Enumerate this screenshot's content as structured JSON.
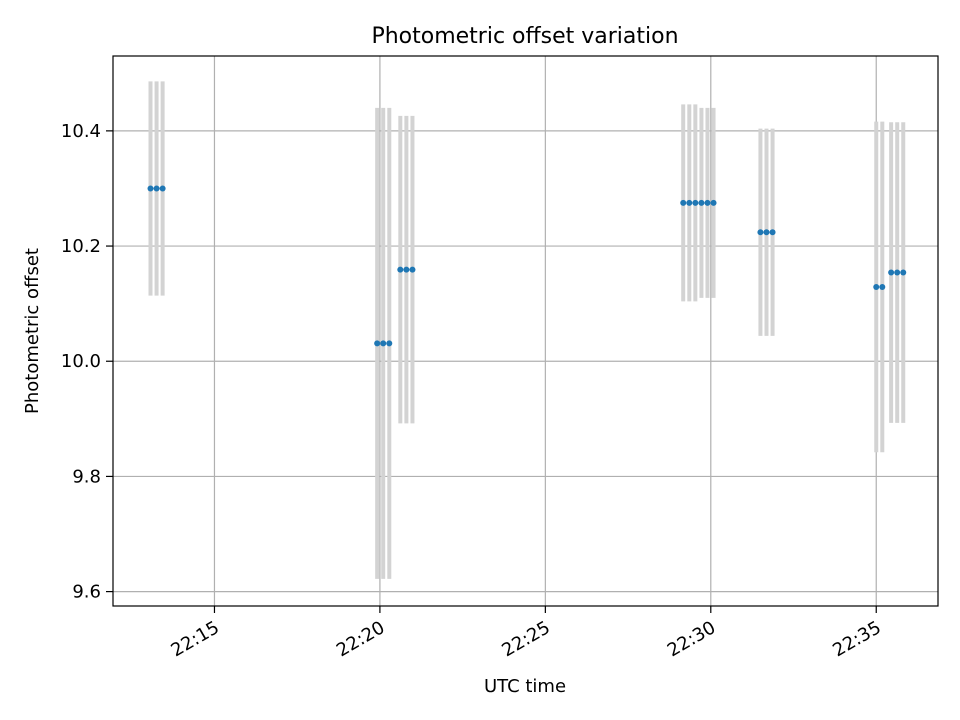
{
  "chart_data": {
    "type": "scatter",
    "title": "Photometric offset variation",
    "xlabel": "UTC time",
    "ylabel": "Photometric offset",
    "grid": true,
    "xlim": [
      "22:11:56",
      "22:36:52"
    ],
    "ylim": [
      9.575,
      10.53
    ],
    "x_ticks": [
      "22:15",
      "22:20",
      "22:25",
      "22:30",
      "22:35"
    ],
    "y_ticks": [
      9.6,
      9.8,
      10.0,
      10.2,
      10.4
    ],
    "y_tick_labels": [
      "9.6",
      "9.8",
      "10.0",
      "10.2",
      "10.4"
    ],
    "errorbar_color": "#d3d3d3",
    "marker_color": "#1f77b4",
    "series": [
      {
        "points": [
          {
            "x": "22:13:04",
            "y": 10.3,
            "err": 0.186
          },
          {
            "x": "22:13:15",
            "y": 10.3,
            "err": 0.186
          },
          {
            "x": "22:13:26",
            "y": 10.3,
            "err": 0.186
          },
          {
            "x": "22:19:55",
            "y": 10.031,
            "err": 0.409
          },
          {
            "x": "22:20:06",
            "y": 10.031,
            "err": 0.409
          },
          {
            "x": "22:20:17",
            "y": 10.031,
            "err": 0.409
          },
          {
            "x": "22:20:37",
            "y": 10.159,
            "err": 0.267
          },
          {
            "x": "22:20:48",
            "y": 10.159,
            "err": 0.267
          },
          {
            "x": "22:20:59",
            "y": 10.159,
            "err": 0.267
          },
          {
            "x": "22:29:10",
            "y": 10.275,
            "err": 0.171
          },
          {
            "x": "22:29:21",
            "y": 10.275,
            "err": 0.171
          },
          {
            "x": "22:29:32",
            "y": 10.275,
            "err": 0.171
          },
          {
            "x": "22:29:43",
            "y": 10.275,
            "err": 0.165
          },
          {
            "x": "22:29:54",
            "y": 10.275,
            "err": 0.165
          },
          {
            "x": "22:30:05",
            "y": 10.275,
            "err": 0.165
          },
          {
            "x": "22:31:30",
            "y": 10.224,
            "err": 0.18
          },
          {
            "x": "22:31:41",
            "y": 10.224,
            "err": 0.18
          },
          {
            "x": "22:31:52",
            "y": 10.224,
            "err": 0.18
          },
          {
            "x": "22:35:00",
            "y": 10.129,
            "err": 0.287
          },
          {
            "x": "22:35:11",
            "y": 10.129,
            "err": 0.287
          },
          {
            "x": "22:35:27",
            "y": 10.154,
            "err": 0.261
          },
          {
            "x": "22:35:38",
            "y": 10.154,
            "err": 0.261
          },
          {
            "x": "22:35:49",
            "y": 10.154,
            "err": 0.261
          }
        ]
      }
    ]
  }
}
